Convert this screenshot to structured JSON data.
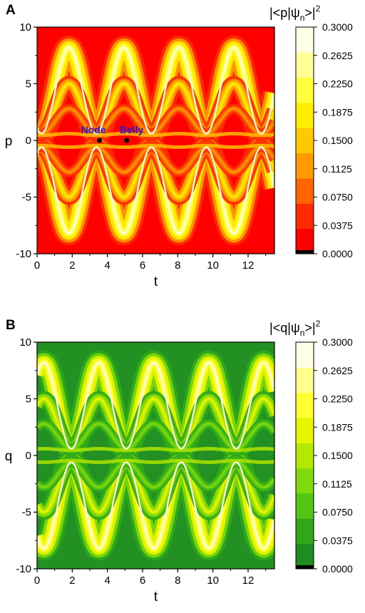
{
  "chart_data": [
    {
      "type": "heatmap",
      "panel_label": "A",
      "title": "",
      "xlabel": "t",
      "ylabel": "p",
      "xlim": [
        0,
        13.5
      ],
      "ylim": [
        -10,
        10
      ],
      "x_ticks": [
        "0",
        "2",
        "4",
        "6",
        "8",
        "10",
        "12"
      ],
      "y_ticks": [
        "-10",
        "-5",
        "0",
        "5",
        "10"
      ],
      "colorbar_title": "|<p|ψ",
      "colorbar_title_sub": "n",
      "colorbar_title_end": ">|",
      "colorbar_title_sup": "2",
      "colorbar_ticks": [
        "0.0000",
        "0.0375",
        "0.0750",
        "0.1125",
        "0.1500",
        "0.1875",
        "0.2250",
        "0.2625",
        "0.3000"
      ],
      "colorbar_range": [
        0,
        0.3
      ],
      "colormap": [
        "#ff0000",
        "#ff2a00",
        "#ff6400",
        "#ff9a00",
        "#ffc800",
        "#ffee00",
        "#ffff3c",
        "#ffff96",
        "#ffffe6"
      ],
      "colormap_floor": "#000000",
      "background_color": "#ff0000",
      "ridge_period": 3.125,
      "ridge_first_trough": 0.25,
      "annotations": [
        {
          "text": "Node",
          "x": 3.55,
          "y": 0,
          "color": "#1f1fd0"
        },
        {
          "text": "Belly",
          "x": 5.1,
          "y": 0,
          "color": "#1f1fd0"
        }
      ]
    },
    {
      "type": "heatmap",
      "panel_label": "B",
      "title": "",
      "xlabel": "t",
      "ylabel": "q",
      "xlim": [
        0,
        13.5
      ],
      "ylim": [
        -10,
        10
      ],
      "x_ticks": [
        "0",
        "2",
        "4",
        "6",
        "8",
        "10",
        "12"
      ],
      "y_ticks": [
        "-10",
        "-5",
        "0",
        "5",
        "10"
      ],
      "colorbar_title": "|<q|ψ",
      "colorbar_title_sub": "n",
      "colorbar_title_end": ">|",
      "colorbar_title_sup": "2",
      "colorbar_ticks": [
        "0.0000",
        "0.0375",
        "0.0750",
        "0.1125",
        "0.1500",
        "0.1875",
        "0.2250",
        "0.2625",
        "0.3000"
      ],
      "colorbar_range": [
        0,
        0.3
      ],
      "colormap": [
        "#1e8c1e",
        "#2fa81a",
        "#52c414",
        "#80d90a",
        "#b4e800",
        "#e6f500",
        "#ffff32",
        "#ffff8c",
        "#ffffe6"
      ],
      "colormap_floor": "#000000",
      "background_color": "#229022",
      "ridge_period": 3.125,
      "ridge_first_trough": 1.95,
      "annotations": []
    }
  ]
}
